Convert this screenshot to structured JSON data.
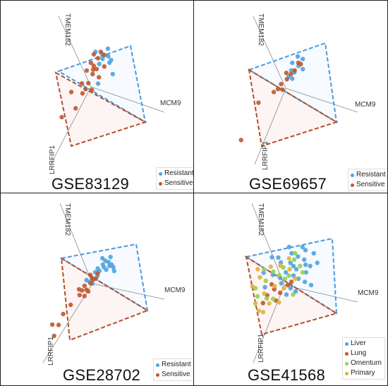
{
  "chart_data": [
    {
      "type": "scatter",
      "title": "GSE83129",
      "axes": [
        "TMEM182",
        "MCM9",
        "LRRFIP1"
      ],
      "legend": [
        {
          "name": "Resistant",
          "color": "#4da3e0"
        },
        {
          "name": "Sensitive",
          "color": "#c0582c"
        }
      ],
      "series": [
        {
          "name": "Resistant",
          "color": "#4da3e0",
          "points": [
            [
              0.1,
              0.52
            ],
            [
              0.2,
              0.48
            ],
            [
              0.08,
              0.36
            ],
            [
              0.23,
              0.38
            ],
            [
              0.25,
              0.42
            ],
            [
              0.0,
              0.55
            ],
            [
              0.3,
              0.2
            ],
            [
              0.1,
              0.05
            ],
            [
              0.18,
              0.6
            ],
            [
              0.12,
              0.44
            ]
          ]
        },
        {
          "name": "Sensitive",
          "color": "#c0582c",
          "points": [
            [
              -0.05,
              0.4
            ],
            [
              0.05,
              0.45
            ],
            [
              -0.1,
              0.3
            ],
            [
              0.0,
              0.2
            ],
            [
              0.05,
              0.28
            ],
            [
              -0.15,
              0.12
            ],
            [
              -0.05,
              0.08
            ],
            [
              0.1,
              0.15
            ],
            [
              -0.3,
              0.05
            ],
            [
              -0.12,
              -0.05
            ],
            [
              -0.08,
              0.0
            ],
            [
              0.02,
              -0.05
            ],
            [
              -0.4,
              -0.3
            ],
            [
              -0.2,
              -0.25
            ],
            [
              0.0,
              0.33
            ],
            [
              0.08,
              0.55
            ],
            [
              0.16,
              0.32
            ],
            [
              -0.02,
              0.52
            ],
            [
              0.14,
              0.5
            ],
            [
              0.0,
              0.27
            ]
          ]
        }
      ]
    },
    {
      "type": "scatter",
      "title": "GSE69657",
      "axes": [
        "TMEM182",
        "MCM9",
        "LRRFIP1"
      ],
      "legend": [
        {
          "name": "Resistant",
          "color": "#4da3e0"
        },
        {
          "name": "Sensitive",
          "color": "#c0582c"
        }
      ],
      "series": [
        {
          "name": "Resistant",
          "color": "#4da3e0",
          "points": [
            [
              0.12,
              0.5
            ],
            [
              0.2,
              0.46
            ],
            [
              0.05,
              0.4
            ],
            [
              0.15,
              0.35
            ],
            [
              0.1,
              0.25
            ],
            [
              0.02,
              0.18
            ],
            [
              0.22,
              0.3
            ],
            [
              0.05,
              0.28
            ],
            [
              0.08,
              0.15
            ]
          ]
        },
        {
          "name": "Sensitive",
          "color": "#c0582c",
          "points": [
            [
              -0.02,
              0.25
            ],
            [
              0.05,
              0.22
            ],
            [
              0.1,
              0.28
            ],
            [
              -0.08,
              0.1
            ],
            [
              -0.12,
              0.04
            ],
            [
              -0.18,
              0.02
            ],
            [
              -0.05,
              0.0
            ],
            [
              -0.4,
              -0.05
            ],
            [
              -0.6,
              -0.55
            ],
            [
              0.14,
              0.4
            ],
            [
              0.18,
              0.38
            ],
            [
              0.0,
              0.14
            ]
          ]
        }
      ]
    },
    {
      "type": "scatter",
      "title": "GSE28702",
      "axes": [
        "TMEM182",
        "MCM9",
        "LRRFIP1"
      ],
      "legend": [
        {
          "name": "Resistant",
          "color": "#4da3e0"
        },
        {
          "name": "Sensitive",
          "color": "#c0582c"
        }
      ],
      "series": [
        {
          "name": "Resistant",
          "color": "#4da3e0",
          "points": [
            [
              0.1,
              0.4
            ],
            [
              0.15,
              0.36
            ],
            [
              0.2,
              0.34
            ],
            [
              0.12,
              0.3
            ],
            [
              0.22,
              0.28
            ],
            [
              0.25,
              0.3
            ],
            [
              0.05,
              0.24
            ],
            [
              0.08,
              0.2
            ],
            [
              0.18,
              0.22
            ],
            [
              0.28,
              0.26
            ],
            [
              0.02,
              0.18
            ],
            [
              0.14,
              0.26
            ],
            [
              0.3,
              0.2
            ],
            [
              0.06,
              0.12
            ],
            [
              -0.05,
              0.05
            ],
            [
              0.0,
              0.0
            ],
            [
              -0.1,
              0.1
            ],
            [
              0.22,
              0.42
            ]
          ]
        },
        {
          "name": "Sensitive",
          "color": "#c0582c",
          "points": [
            [
              -0.05,
              0.16
            ],
            [
              -0.02,
              0.1
            ],
            [
              0.04,
              0.08
            ],
            [
              -0.12,
              0.02
            ],
            [
              -0.15,
              -0.04
            ],
            [
              -0.08,
              -0.06
            ],
            [
              -0.2,
              0.0
            ],
            [
              -0.05,
              -0.1
            ],
            [
              -0.3,
              -0.2
            ],
            [
              -0.4,
              -0.3
            ],
            [
              -0.55,
              -0.4
            ],
            [
              -0.45,
              -0.45
            ],
            [
              -0.5,
              -0.6
            ],
            [
              -0.1,
              -0.15
            ],
            [
              0.0,
              0.06
            ],
            [
              0.06,
              0.16
            ],
            [
              -0.18,
              -0.1
            ],
            [
              -0.03,
              0.02
            ]
          ]
        }
      ]
    },
    {
      "type": "scatter",
      "title": "GSE41568",
      "axes": [
        "TMEM182",
        "MCM9",
        "LRRFIP1"
      ],
      "legend": [
        {
          "name": "Liver",
          "color": "#4da3e0"
        },
        {
          "name": "Lung",
          "color": "#c0582c"
        },
        {
          "name": "Omentum",
          "color": "#8fd14f"
        },
        {
          "name": "Primary",
          "color": "#e0b43a"
        }
      ],
      "series": [
        {
          "name": "Liver",
          "color": "#4da3e0",
          "points": [
            [
              0.05,
              0.5
            ],
            [
              0.15,
              0.45
            ],
            [
              0.25,
              0.4
            ],
            [
              0.3,
              0.2
            ],
            [
              0.1,
              0.3
            ],
            [
              0.2,
              0.1
            ],
            [
              -0.1,
              0.4
            ],
            [
              0.0,
              0.2
            ],
            [
              -0.2,
              0.25
            ],
            [
              0.35,
              0.3
            ],
            [
              0.4,
              0.0
            ],
            [
              0.1,
              -0.05
            ],
            [
              -0.05,
              0.05
            ],
            [
              -0.3,
              0.1
            ],
            [
              0.25,
              0.55
            ],
            [
              0.45,
              0.35
            ],
            [
              0.15,
              0.25
            ],
            [
              -0.15,
              0.5
            ],
            [
              0.05,
              0.35
            ],
            [
              0.3,
              0.05
            ],
            [
              -0.35,
              0.35
            ],
            [
              0.2,
              0.6
            ],
            [
              0.0,
              0.6
            ],
            [
              0.18,
              -0.1
            ],
            [
              -0.25,
              0.55
            ],
            [
              0.38,
              0.5
            ],
            [
              0.12,
              0.15
            ],
            [
              -0.08,
              0.15
            ],
            [
              0.28,
              0.32
            ],
            [
              0.05,
              -0.15
            ]
          ]
        },
        {
          "name": "Lung",
          "color": "#c0582c",
          "points": [
            [
              -0.15,
              0.0
            ],
            [
              -0.25,
              -0.05
            ],
            [
              -0.05,
              -0.1
            ],
            [
              0.05,
              0.0
            ],
            [
              -0.3,
              -0.15
            ],
            [
              0.1,
              0.05
            ],
            [
              -0.2,
              0.1
            ],
            [
              -0.1,
              -0.2
            ]
          ]
        },
        {
          "name": "Omentum",
          "color": "#8fd14f",
          "points": [
            [
              -0.2,
              0.3
            ],
            [
              -0.1,
              0.2
            ],
            [
              0.0,
              0.1
            ],
            [
              -0.3,
              0.2
            ],
            [
              0.1,
              0.4
            ],
            [
              -0.4,
              0.0
            ],
            [
              0.2,
              0.3
            ],
            [
              -0.05,
              0.3
            ],
            [
              -0.25,
              -0.1
            ],
            [
              0.15,
              -0.15
            ],
            [
              -0.35,
              0.4
            ],
            [
              0.05,
              0.15
            ],
            [
              -0.15,
              -0.15
            ],
            [
              0.25,
              0.2
            ],
            [
              -0.45,
              0.15
            ],
            [
              0.1,
              0.5
            ]
          ]
        },
        {
          "name": "Primary",
          "color": "#e0b43a",
          "points": [
            [
              -0.4,
              0.3
            ],
            [
              -0.3,
              0.0
            ],
            [
              -0.2,
              -0.2
            ],
            [
              -0.45,
              0.45
            ],
            [
              -0.1,
              0.35
            ],
            [
              0.0,
              -0.05
            ],
            [
              -0.35,
              -0.25
            ],
            [
              0.05,
              0.25
            ],
            [
              -0.25,
              0.4
            ],
            [
              -0.5,
              0.2
            ],
            [
              -0.15,
              0.05
            ],
            [
              0.15,
              0.1
            ],
            [
              -0.05,
              -0.25
            ],
            [
              -0.42,
              -0.1
            ],
            [
              0.02,
              0.42
            ],
            [
              -0.28,
              -0.3
            ]
          ]
        }
      ]
    }
  ]
}
